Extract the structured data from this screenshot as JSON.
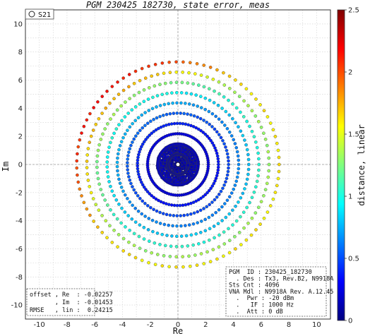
{
  "chart_data": {
    "type": "scatter",
    "title": "PGM 230425_182730, state error, meas",
    "xlabel": "Re",
    "ylabel": "Im",
    "xlim": [
      -11,
      11
    ],
    "ylim": [
      -11,
      11
    ],
    "xticks": [
      -10,
      -8,
      -6,
      -4,
      -2,
      0,
      2,
      4,
      6,
      8,
      10
    ],
    "yticks": [
      -10,
      -8,
      -6,
      -4,
      -2,
      0,
      2,
      4,
      6,
      8,
      10
    ],
    "grid": true,
    "legend": {
      "location": "top-left",
      "entries": [
        {
          "name": "S21",
          "marker": "open-circle"
        }
      ]
    },
    "colorbar": {
      "label": "distance, linear",
      "range": [
        0,
        2.5
      ],
      "ticks": [
        0,
        0.5,
        1,
        1.5,
        2,
        2.5
      ],
      "colormap": "jet"
    },
    "pattern": {
      "description": "polar grid of measured states: 91 angular spokes x 10 radial rings, color = distance error",
      "spokes": 91,
      "rings": [
        0.73,
        1.46,
        2.19,
        2.92,
        3.65,
        4.38,
        5.11,
        5.84,
        6.57,
        7.3
      ],
      "max_radius": 7.3,
      "error_vs_radius": {
        "radius": [
          0,
          2,
          4,
          5.5,
          6.5,
          7.3
        ],
        "distance": [
          0.1,
          0.2,
          0.55,
          0.9,
          1.3,
          1.6
        ]
      },
      "error_max": 2.3,
      "reference_point": {
        "re": 0,
        "im": 0,
        "color": "#ffffff"
      }
    },
    "stats_box": {
      "location": "bottom-left",
      "lines": [
        "offset , Re  : -0.02257",
        "       , Im  : -0.01453",
        "RMSE   , lin :  0.24215"
      ]
    },
    "info_box": {
      "location": "bottom-right",
      "lines": [
        "PGM  ID : 230425_182730",
        "  . Des : Tx3, Rev.B2, N9918A",
        "Sts Cnt : 4096",
        "VNA Mdl : N9918A Rev. A.12.45",
        "  .  Pwr : -20 dBm",
        "  .   IF : 1000 Hz",
        "  .  Att : 0 dB"
      ]
    }
  },
  "colors": {
    "grid": "#d0d0d0",
    "zero_line": "#9a9a9a",
    "frame": "#333333",
    "marker_edge": "#3a3a3a"
  }
}
